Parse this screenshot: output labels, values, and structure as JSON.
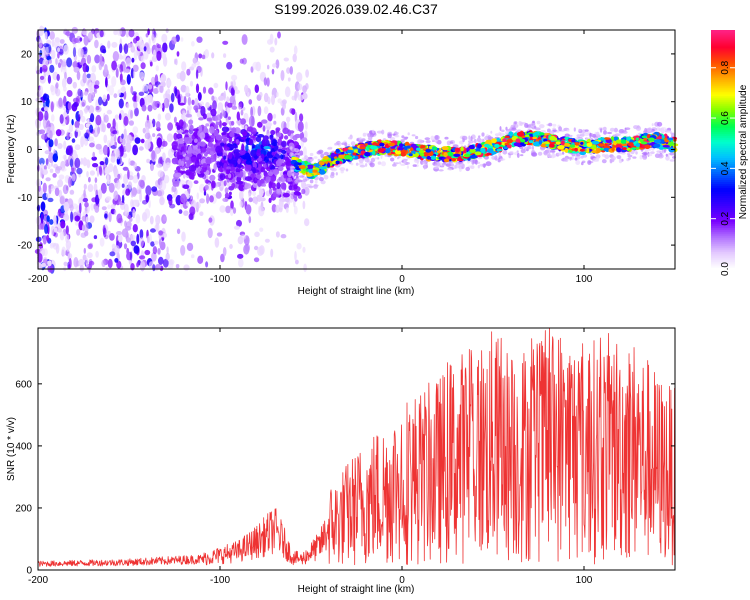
{
  "title": "S199.2026.039.02.46.C37",
  "colors": {
    "snr_line": "#ee3333",
    "colormap": [
      "#ffffff",
      "#e3c9ff",
      "#b070ff",
      "#7a00ff",
      "#3a00ff",
      "#0000ff",
      "#0060ff",
      "#00c0ff",
      "#00ffcc",
      "#00ff50",
      "#80ff00",
      "#ffff00",
      "#ffaa00",
      "#ff5000",
      "#ff0030",
      "#ff2080"
    ]
  },
  "chart_data": [
    {
      "type": "heatmap",
      "name": "spectrogram",
      "xlabel": "Height of straight line (km)",
      "ylabel": "Frequency (Hz)",
      "xlim": [
        -200,
        150
      ],
      "ylim": [
        -25,
        25
      ],
      "xticks": [
        -200,
        -100,
        0,
        100
      ],
      "yticks": [
        -20,
        -10,
        0,
        10,
        20
      ],
      "ridge_frequency_hz": {
        "x": [
          -60,
          -55,
          -50,
          -45,
          -40,
          -35,
          -30,
          -20,
          -10,
          0,
          10,
          20,
          30,
          40,
          50,
          60,
          70,
          80,
          90,
          100,
          110,
          120,
          130,
          140,
          150
        ],
        "y": [
          -3,
          -3.5,
          -4.5,
          -4,
          -2.5,
          -1.5,
          -1,
          0,
          0.5,
          0,
          -0.5,
          -1,
          -1,
          -0.5,
          0.5,
          2,
          2.5,
          2,
          1,
          0.5,
          1,
          1,
          1.5,
          2,
          1
        ]
      },
      "noise_region_km": [
        -200,
        -60
      ],
      "colorbar": {
        "label": "Normalized spectral amplitude",
        "range": [
          0,
          0.95
        ],
        "ticks": [
          "0.0",
          "0.2",
          "0.4",
          "0.6",
          "0.8"
        ],
        "tick_values": [
          0,
          0.2,
          0.4,
          0.6,
          0.8
        ]
      }
    },
    {
      "type": "line",
      "name": "snr",
      "xlabel": "Height of straight line (km)",
      "ylabel": "SNR (10 * v/v)",
      "xlim": [
        -200,
        150
      ],
      "ylim": [
        0,
        780
      ],
      "xticks": [
        -200,
        -100,
        0,
        100
      ],
      "yticks": [
        0,
        200,
        400,
        600
      ],
      "envelope": {
        "x": [
          -200,
          -150,
          -110,
          -90,
          -80,
          -70,
          -66,
          -60,
          -55,
          -45,
          -40,
          -30,
          -20,
          -10,
          0,
          10,
          20,
          30,
          40,
          50,
          60,
          70,
          80,
          90,
          100,
          110,
          120,
          130,
          140,
          150
        ],
        "y": [
          20,
          25,
          35,
          60,
          90,
          130,
          100,
          40,
          35,
          80,
          140,
          180,
          220,
          250,
          290,
          300,
          320,
          360,
          380,
          400,
          370,
          380,
          400,
          410,
          380,
          390,
          400,
          380,
          330,
          300
        ]
      }
    }
  ]
}
